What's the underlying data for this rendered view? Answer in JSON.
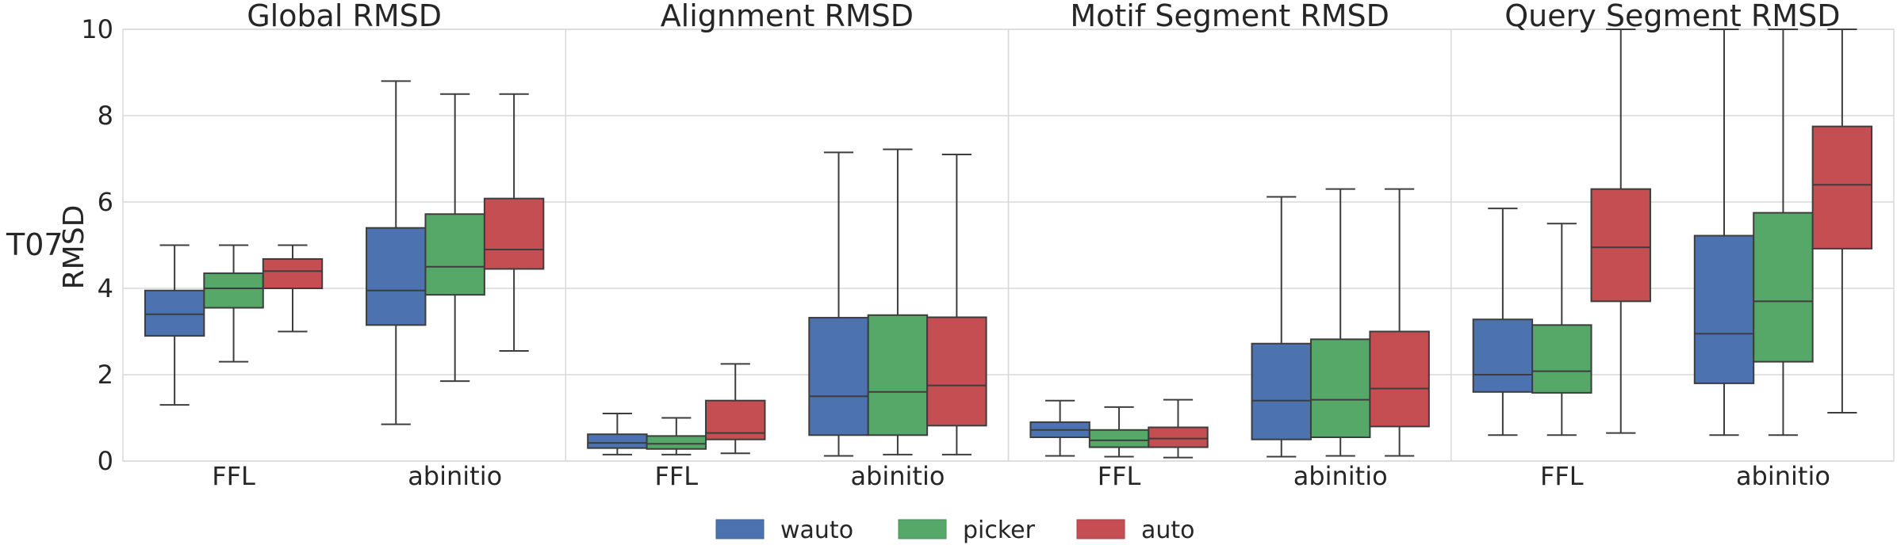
{
  "row_label": "T07",
  "chart_data": [
    {
      "type": "box",
      "title": "Global RMSD",
      "ylabel": "RMSD",
      "ylim": [
        0,
        10
      ],
      "yticks": [
        0,
        2,
        4,
        6,
        8,
        10
      ],
      "categories": [
        "FFL",
        "abinitio"
      ],
      "series": [
        {
          "name": "wauto",
          "color": "#4c72b0",
          "boxes": [
            {
              "whislo": 1.3,
              "q1": 2.9,
              "med": 3.4,
              "q3": 3.95,
              "whishi": 5.0
            },
            {
              "whislo": 0.85,
              "q1": 3.15,
              "med": 3.95,
              "q3": 5.4,
              "whishi": 8.8
            }
          ]
        },
        {
          "name": "picker",
          "color": "#55a868",
          "boxes": [
            {
              "whislo": 2.3,
              "q1": 3.55,
              "med": 4.0,
              "q3": 4.35,
              "whishi": 5.0
            },
            {
              "whislo": 1.85,
              "q1": 3.85,
              "med": 4.5,
              "q3": 5.72,
              "whishi": 8.5
            }
          ]
        },
        {
          "name": "auto",
          "color": "#c44e52",
          "boxes": [
            {
              "whislo": 3.0,
              "q1": 4.0,
              "med": 4.4,
              "q3": 4.68,
              "whishi": 5.0
            },
            {
              "whislo": 2.55,
              "q1": 4.45,
              "med": 4.9,
              "q3": 6.08,
              "whishi": 8.5
            }
          ]
        }
      ]
    },
    {
      "type": "box",
      "title": "Alignment RMSD",
      "ylim": [
        0,
        10
      ],
      "categories": [
        "FFL",
        "abinitio"
      ],
      "series": [
        {
          "name": "wauto",
          "color": "#4c72b0",
          "boxes": [
            {
              "whislo": 0.15,
              "q1": 0.3,
              "med": 0.42,
              "q3": 0.62,
              "whishi": 1.1
            },
            {
              "whislo": 0.12,
              "q1": 0.6,
              "med": 1.5,
              "q3": 3.32,
              "whishi": 7.15
            }
          ]
        },
        {
          "name": "picker",
          "color": "#55a868",
          "boxes": [
            {
              "whislo": 0.15,
              "q1": 0.28,
              "med": 0.4,
              "q3": 0.58,
              "whishi": 1.0
            },
            {
              "whislo": 0.15,
              "q1": 0.6,
              "med": 1.6,
              "q3": 3.38,
              "whishi": 7.22
            }
          ]
        },
        {
          "name": "auto",
          "color": "#c44e52",
          "boxes": [
            {
              "whislo": 0.18,
              "q1": 0.5,
              "med": 0.65,
              "q3": 1.4,
              "whishi": 2.25
            },
            {
              "whislo": 0.15,
              "q1": 0.82,
              "med": 1.75,
              "q3": 3.33,
              "whishi": 7.1
            }
          ]
        }
      ]
    },
    {
      "type": "box",
      "title": "Motif Segment RMSD",
      "ylim": [
        0,
        10
      ],
      "categories": [
        "FFL",
        "abinitio"
      ],
      "series": [
        {
          "name": "wauto",
          "color": "#4c72b0",
          "boxes": [
            {
              "whislo": 0.12,
              "q1": 0.55,
              "med": 0.72,
              "q3": 0.9,
              "whishi": 1.4
            },
            {
              "whislo": 0.1,
              "q1": 0.5,
              "med": 1.4,
              "q3": 2.72,
              "whishi": 6.12
            }
          ]
        },
        {
          "name": "picker",
          "color": "#55a868",
          "boxes": [
            {
              "whislo": 0.1,
              "q1": 0.32,
              "med": 0.48,
              "q3": 0.72,
              "whishi": 1.25
            },
            {
              "whislo": 0.12,
              "q1": 0.55,
              "med": 1.42,
              "q3": 2.82,
              "whishi": 6.3
            }
          ]
        },
        {
          "name": "auto",
          "color": "#c44e52",
          "boxes": [
            {
              "whislo": 0.08,
              "q1": 0.32,
              "med": 0.52,
              "q3": 0.78,
              "whishi": 1.42
            },
            {
              "whislo": 0.12,
              "q1": 0.8,
              "med": 1.68,
              "q3": 3.0,
              "whishi": 6.3
            }
          ]
        }
      ]
    },
    {
      "type": "box",
      "title": "Query Segment RMSD",
      "ylim": [
        0,
        10
      ],
      "categories": [
        "FFL",
        "abinitio"
      ],
      "series": [
        {
          "name": "wauto",
          "color": "#4c72b0",
          "boxes": [
            {
              "whislo": 0.6,
              "q1": 1.6,
              "med": 2.0,
              "q3": 3.28,
              "whishi": 5.85
            },
            {
              "whislo": 0.6,
              "q1": 1.8,
              "med": 2.95,
              "q3": 5.22,
              "whishi": 10.0
            }
          ]
        },
        {
          "name": "picker",
          "color": "#55a868",
          "boxes": [
            {
              "whislo": 0.6,
              "q1": 1.58,
              "med": 2.08,
              "q3": 3.15,
              "whishi": 5.5
            },
            {
              "whislo": 0.6,
              "q1": 2.3,
              "med": 3.7,
              "q3": 5.75,
              "whishi": 10.0
            }
          ]
        },
        {
          "name": "auto",
          "color": "#c44e52",
          "boxes": [
            {
              "whislo": 0.65,
              "q1": 3.7,
              "med": 4.95,
              "q3": 6.3,
              "whishi": 10.0
            },
            {
              "whislo": 1.12,
              "q1": 4.92,
              "med": 6.4,
              "q3": 7.75,
              "whishi": 10.0
            }
          ]
        }
      ]
    }
  ],
  "legend": [
    {
      "name": "wauto",
      "color": "#4c72b0"
    },
    {
      "name": "picker",
      "color": "#55a868"
    },
    {
      "name": "auto",
      "color": "#c44e52"
    }
  ]
}
